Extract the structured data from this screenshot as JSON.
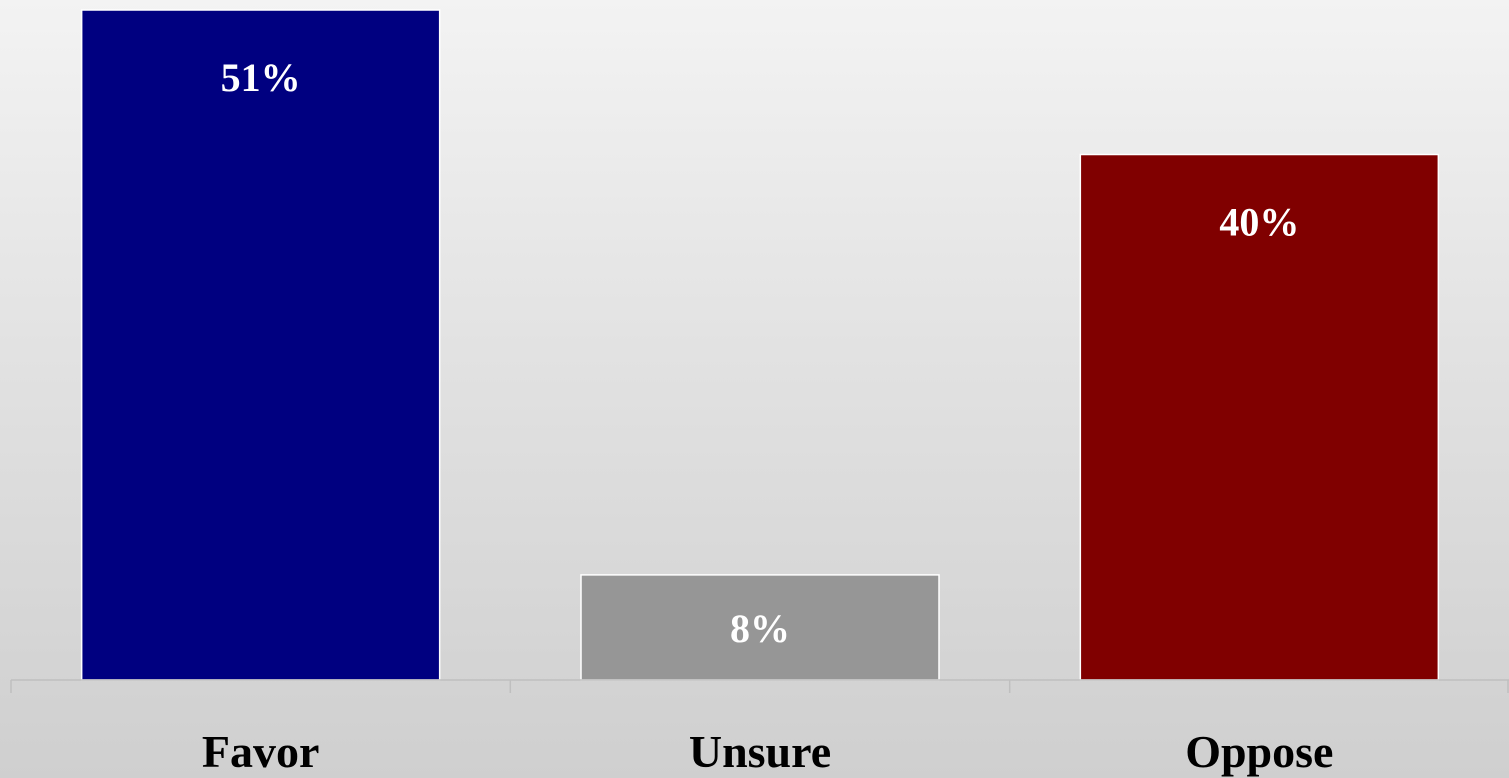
{
  "chart_data": {
    "type": "bar",
    "categories": [
      "Favor",
      "Unsure",
      "Oppose"
    ],
    "values": [
      51,
      8,
      40
    ],
    "value_labels": [
      "51%",
      "8%",
      "40%"
    ],
    "colors": [
      "#000080",
      "#969696",
      "#800000"
    ],
    "unit": "%",
    "ylim": [
      0,
      51
    ],
    "grid": false,
    "legend": "none",
    "title": "",
    "xlabel": "",
    "ylabel": ""
  }
}
